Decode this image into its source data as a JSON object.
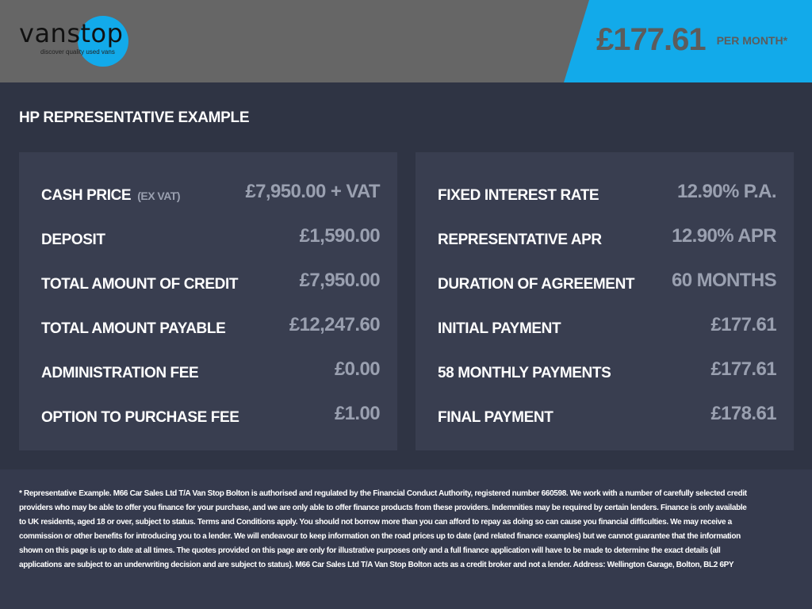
{
  "header": {
    "logo": {
      "text": "vanstop",
      "tagline": "discover quality used vans"
    },
    "monthly_price": "£177.61",
    "per_month": "PER MONTH*",
    "colors": {
      "header_bg": "#666666",
      "accent": "#12aaea"
    }
  },
  "section_title": "HP REPRESENTATIVE EXAMPLE",
  "left_panel": [
    {
      "label": "CASH PRICE",
      "sub": "(EX VAT)",
      "value": "£7,950.00 + VAT"
    },
    {
      "label": "DEPOSIT",
      "value": "£1,590.00"
    },
    {
      "label": "TOTAL AMOUNT OF CREDIT",
      "value": "£7,950.00"
    },
    {
      "label": "TOTAL AMOUNT PAYABLE",
      "value": "£12,247.60"
    },
    {
      "label": "ADMINISTRATION FEE",
      "value": "£0.00"
    },
    {
      "label": "OPTION TO PURCHASE FEE",
      "value": "£1.00"
    }
  ],
  "right_panel": [
    {
      "label": "FIXED INTEREST RATE",
      "value": "12.90% P.A."
    },
    {
      "label": "REPRESENTATIVE APR",
      "value": "12.90% APR"
    },
    {
      "label": "DURATION OF AGREEMENT",
      "value": "60 MONTHS"
    },
    {
      "label": "INITIAL PAYMENT",
      "value": "£177.61"
    },
    {
      "label": "58 MONTHLY PAYMENTS",
      "value": "£177.61"
    },
    {
      "label": "FINAL PAYMENT",
      "value": "£178.61"
    }
  ],
  "disclaimer_lines": [
    "* Representative Example. M66 Car Sales Ltd T/A Van Stop Bolton is authorised and regulated by the Financial Conduct Authority, registered number 660598. We work with a number of carefully selected credit",
    "providers who may be able to offer you finance for your purchase, and we are only able to offer finance products from these providers. Indemnities may be required by certain lenders. Finance is only available",
    "to UK residents, aged 18 or over, subject to status. Terms and Conditions apply. You should not borrow more than you can afford to repay as doing so can cause you financial difficulties. We may receive a",
    "commission or other benefits for introducing you to a lender. We will endeavour to keep information on the road prices up to date (and related finance examples) but we cannot guarantee that the information",
    "shown on this page is up to date at all times. The quotes provided on this page are only for illustrative purposes only and a full finance application will have to be made to determine the exact details (all",
    "applications are subject to an underwriting decision and are subject to status). M66 Car Sales Ltd T/A Van Stop Bolton acts as a credit broker and not a lender. Address: Wellington Garage, Bolton, BL2 6PY"
  ]
}
